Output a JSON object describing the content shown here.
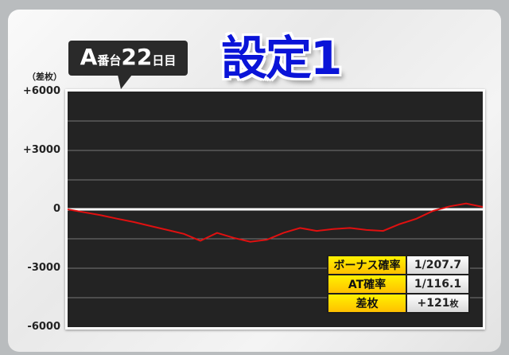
{
  "header": {
    "title": "設定1",
    "machine_prefix": "A",
    "machine_label": "番台",
    "day_number": "22",
    "day_label": "日目"
  },
  "chart_data": {
    "type": "line",
    "ylabel": "（差枚）",
    "ylim": [
      -6000,
      6000
    ],
    "yticks": [
      "+6000",
      "+3000",
      "0",
      "-3000",
      "-6000"
    ],
    "ytick_values": [
      6000,
      3000,
      0,
      -3000,
      -6000
    ],
    "grid": true,
    "grid_step": 1500,
    "line_color": "#e01010",
    "values": [
      0,
      -150,
      -300,
      -480,
      -650,
      -850,
      -1050,
      -1250,
      -1600,
      -1200,
      -1450,
      -1650,
      -1550,
      -1200,
      -950,
      -1100,
      -1000,
      -950,
      -1050,
      -1100,
      -750,
      -480,
      -80,
      150,
      300,
      121
    ]
  },
  "stats": [
    {
      "label": "ボーナス確率",
      "value": "1/207.7",
      "unit": ""
    },
    {
      "label": "AT確率",
      "value": "1/116.1",
      "unit": ""
    },
    {
      "label": "差枚",
      "value": "+121",
      "unit": "枚"
    }
  ]
}
